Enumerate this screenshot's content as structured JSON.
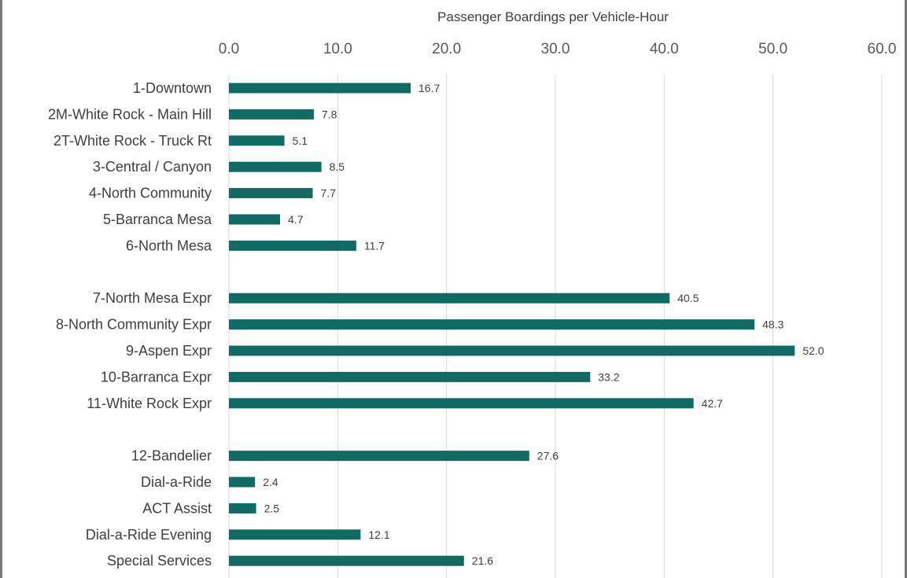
{
  "chart_data": {
    "type": "bar",
    "orientation": "horizontal",
    "xlabel": "Passenger Boardings per Vehicle-Hour",
    "ylabel": "",
    "xlim": [
      0,
      60
    ],
    "x_ticks": [
      "0.0",
      "10.0",
      "20.0",
      "30.0",
      "40.0",
      "50.0",
      "60.0"
    ],
    "x_axis_position": "top",
    "grid": true,
    "bar_color": "#0f6b64",
    "categories": [
      "1-Downtown",
      "2M-White Rock - Main Hill",
      "2T-White Rock - Truck Rt",
      "3-Central / Canyon",
      "4-North Community",
      "5-Barranca Mesa",
      "6-North Mesa",
      "",
      "7-North Mesa Expr",
      "8-North Community Expr",
      "9-Aspen Expr",
      "10-Barranca Expr",
      "11-White Rock Expr",
      "",
      "12-Bandelier",
      "Dial-a-Ride",
      "ACT Assist",
      "Dial-a-Ride Evening",
      "Special Services"
    ],
    "values": [
      16.7,
      7.8,
      5.1,
      8.5,
      7.7,
      4.7,
      11.7,
      null,
      40.5,
      48.3,
      52.0,
      33.2,
      42.7,
      null,
      27.6,
      2.4,
      2.5,
      12.1,
      21.6
    ],
    "data_labels": [
      "16.7",
      "7.8",
      "5.1",
      "8.5",
      "7.7",
      "4.7",
      "11.7",
      "",
      "40.5",
      "48.3",
      "52.0",
      "33.2",
      "42.7",
      "",
      "27.6",
      "2.4",
      "2.5",
      "12.1",
      "21.6"
    ]
  }
}
